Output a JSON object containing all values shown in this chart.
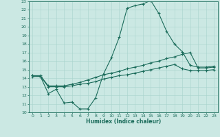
{
  "xlabel": "Humidex (Indice chaleur)",
  "bg_color": "#cbe8e3",
  "line_color": "#1a6b5a",
  "grid_color": "#a8d4cd",
  "xlim": [
    -0.5,
    23.5
  ],
  "ylim": [
    10,
    23
  ],
  "xticks": [
    0,
    1,
    2,
    3,
    4,
    5,
    6,
    7,
    8,
    9,
    10,
    11,
    12,
    13,
    14,
    15,
    16,
    17,
    18,
    19,
    20,
    21,
    22,
    23
  ],
  "yticks": [
    10,
    11,
    12,
    13,
    14,
    15,
    16,
    17,
    18,
    19,
    20,
    21,
    22,
    23
  ],
  "line1_x": [
    0,
    1,
    2,
    3,
    4,
    5,
    6,
    7,
    8,
    9,
    10,
    11,
    12,
    13,
    14,
    15,
    16,
    17,
    18,
    19,
    20,
    21,
    22,
    23
  ],
  "line1_y": [
    14.3,
    14.2,
    12.2,
    12.7,
    11.1,
    11.2,
    10.4,
    10.4,
    11.7,
    14.5,
    16.4,
    18.8,
    22.2,
    22.5,
    22.7,
    23.1,
    21.6,
    19.5,
    18.0,
    17.1,
    15.5,
    15.3,
    15.3,
    15.4
  ],
  "line2_x": [
    0,
    1,
    2,
    3,
    4,
    5,
    6,
    7,
    8,
    9,
    10,
    11,
    12,
    13,
    14,
    15,
    16,
    17,
    18,
    19,
    20,
    21,
    22,
    23
  ],
  "line2_y": [
    14.3,
    14.3,
    13.1,
    13.1,
    13.1,
    13.3,
    13.5,
    13.8,
    14.1,
    14.4,
    14.6,
    14.8,
    15.1,
    15.3,
    15.5,
    15.8,
    16.0,
    16.3,
    16.5,
    16.8,
    17.0,
    15.2,
    15.2,
    15.3
  ],
  "line3_x": [
    0,
    1,
    2,
    3,
    4,
    5,
    6,
    7,
    8,
    9,
    10,
    11,
    12,
    13,
    14,
    15,
    16,
    17,
    18,
    19,
    20,
    21,
    22,
    23
  ],
  "line3_y": [
    14.2,
    14.2,
    13.0,
    13.0,
    13.0,
    13.1,
    13.3,
    13.4,
    13.6,
    13.9,
    14.1,
    14.3,
    14.4,
    14.6,
    14.8,
    15.0,
    15.2,
    15.4,
    15.6,
    15.1,
    14.9,
    14.9,
    14.9,
    15.0
  ]
}
